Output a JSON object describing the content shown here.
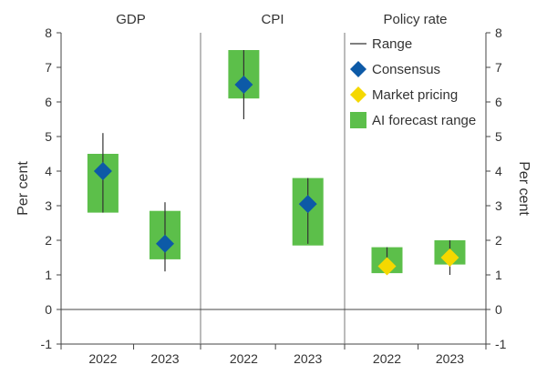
{
  "chart_data": {
    "type": "range",
    "panels": [
      {
        "title": "GDP",
        "categories": [
          "2022",
          "2023"
        ],
        "range": [
          [
            2.8,
            5.1
          ],
          [
            1.1,
            3.1
          ]
        ],
        "consensus": [
          4.0,
          1.9
        ],
        "market_pricing": [
          null,
          null
        ],
        "ai_forecast_range": [
          [
            2.8,
            4.5
          ],
          [
            1.45,
            2.85
          ]
        ]
      },
      {
        "title": "CPI",
        "categories": [
          "2022",
          "2023"
        ],
        "range": [
          [
            5.5,
            7.5
          ],
          [
            1.9,
            3.8
          ]
        ],
        "consensus": [
          6.5,
          3.05
        ],
        "market_pricing": [
          null,
          null
        ],
        "ai_forecast_range": [
          [
            6.1,
            7.5
          ],
          [
            1.85,
            3.8
          ]
        ]
      },
      {
        "title": "Policy rate",
        "categories": [
          "2022",
          "2023"
        ],
        "range": [
          [
            1.0,
            1.8
          ],
          [
            1.0,
            2.0
          ]
        ],
        "consensus": [
          null,
          null
        ],
        "market_pricing": [
          1.25,
          1.5
        ],
        "ai_forecast_range": [
          [
            1.05,
            1.8
          ],
          [
            1.3,
            2.0
          ]
        ]
      }
    ],
    "legend": [
      {
        "key": "range",
        "label": "Range"
      },
      {
        "key": "consensus",
        "label": "Consensus"
      },
      {
        "key": "market_pricing",
        "label": "Market pricing"
      },
      {
        "key": "ai_forecast_range",
        "label": "AI forecast range"
      }
    ],
    "legend_position": "top-right",
    "ylabel_left": "Per cent",
    "ylabel_right": "Per cent",
    "ylim": [
      -1,
      8
    ],
    "yticks": [
      -1,
      0,
      1,
      2,
      3,
      4,
      5,
      6,
      7,
      8
    ],
    "grid": false,
    "colors": {
      "range": "#333333",
      "consensus": "#0d5aa7",
      "market_pricing": "#f5d800",
      "ai_forecast_range": "#5cbf4a",
      "axis": "#444444"
    }
  }
}
